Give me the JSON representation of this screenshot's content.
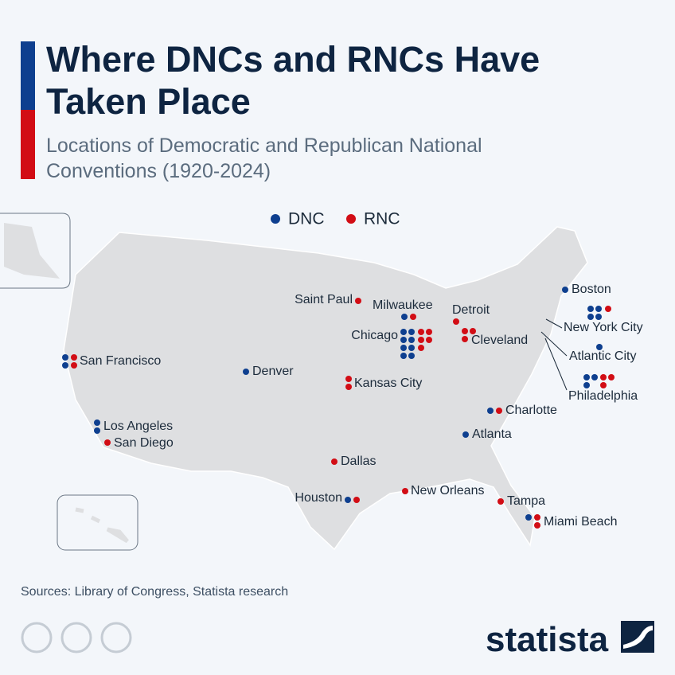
{
  "title": [
    "Where DNCs and RNCs Have",
    "Taken Place"
  ],
  "subtitle": [
    "Locations of Democratic and Republican National",
    "Conventions (1920-2024)"
  ],
  "legend": {
    "dnc": {
      "label": "DNC",
      "color": "#0e3f8f"
    },
    "rnc": {
      "label": "RNC",
      "color": "#d20d15"
    }
  },
  "cities": [
    {
      "name": "Saint Paul",
      "dnc": 0,
      "rnc": 1
    },
    {
      "name": "Milwaukee",
      "dnc": 1,
      "rnc": 1
    },
    {
      "name": "Chicago",
      "dnc": 8,
      "rnc": 5
    },
    {
      "name": "Detroit",
      "dnc": 0,
      "rnc": 1
    },
    {
      "name": "Cleveland",
      "dnc": 0,
      "rnc": 3
    },
    {
      "name": "Boston",
      "dnc": 1,
      "rnc": 0
    },
    {
      "name": "New York City",
      "dnc": 4,
      "rnc": 1
    },
    {
      "name": "Atlantic City",
      "dnc": 1,
      "rnc": 0
    },
    {
      "name": "Philadelphia",
      "dnc": 3,
      "rnc": 3
    },
    {
      "name": "San Francisco",
      "dnc": 2,
      "rnc": 2
    },
    {
      "name": "Denver",
      "dnc": 1,
      "rnc": 0
    },
    {
      "name": "Kansas City",
      "dnc": 0,
      "rnc": 2
    },
    {
      "name": "Charlotte",
      "dnc": 1,
      "rnc": 1
    },
    {
      "name": "Atlanta",
      "dnc": 1,
      "rnc": 0
    },
    {
      "name": "Los Angeles",
      "dnc": 2,
      "rnc": 0
    },
    {
      "name": "San Diego",
      "dnc": 0,
      "rnc": 1
    },
    {
      "name": "Dallas",
      "dnc": 0,
      "rnc": 1
    },
    {
      "name": "Houston",
      "dnc": 1,
      "rnc": 1
    },
    {
      "name": "New Orleans",
      "dnc": 0,
      "rnc": 1
    },
    {
      "name": "Tampa",
      "dnc": 0,
      "rnc": 1
    },
    {
      "name": "Miami Beach",
      "dnc": 1,
      "rnc": 2
    }
  ],
  "source": "Sources: Library of Congress, Statista research",
  "logo": "statista"
}
